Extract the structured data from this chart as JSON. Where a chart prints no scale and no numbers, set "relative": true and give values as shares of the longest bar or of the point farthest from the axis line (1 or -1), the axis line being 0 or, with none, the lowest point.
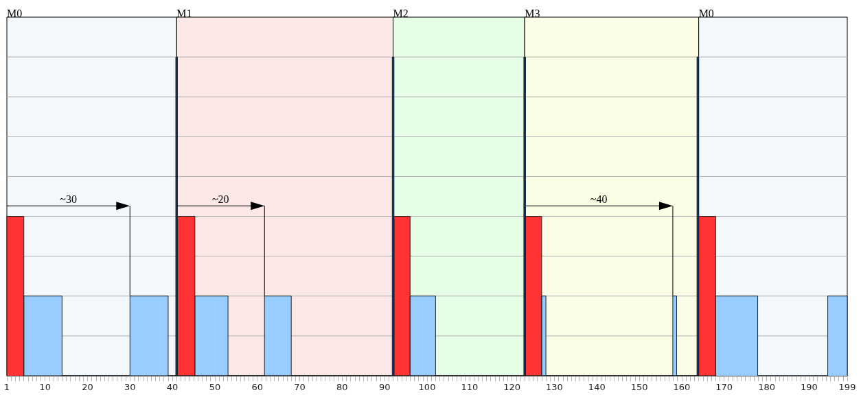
{
  "chart_data": {
    "type": "area",
    "relative": true,
    "series": [
      {
        "color": "#ff3333",
        "x": [
          1,
          1,
          5,
          5,
          41.2,
          41.2,
          45.3,
          45.3,
          92.2,
          92.2,
          96,
          96,
          123.2,
          123.2,
          127,
          127,
          164,
          164,
          168,
          168
        ],
        "values": [
          0,
          0.5,
          0.5,
          0,
          0,
          0.5,
          0.5,
          0,
          0,
          0.5,
          0.5,
          0,
          0,
          0.5,
          0.5,
          0,
          0,
          0.5,
          0.5,
          0
        ]
      },
      {
        "color": "#99ccff",
        "x": [
          5,
          5,
          14,
          14,
          30,
          30,
          39,
          39,
          45.3,
          45.3,
          53.1,
          53.1,
          61.7,
          61.7,
          68,
          68,
          96,
          96,
          102,
          102,
          127,
          127,
          128,
          128,
          157.9,
          157.9,
          158.8,
          158.8,
          168,
          168,
          177.9,
          177.9,
          194.4,
          194.4,
          199,
          199
        ],
        "values": [
          0,
          0.25,
          0.25,
          0,
          0,
          0.25,
          0.25,
          0,
          0,
          0.25,
          0.25,
          0,
          0,
          0.25,
          0.25,
          0,
          0,
          0.25,
          0.25,
          0,
          0,
          0.25,
          0.25,
          0,
          0,
          0.25,
          0.25,
          0,
          0,
          0.25,
          0.25,
          0,
          0,
          0.25,
          0.25,
          0
        ]
      },
      {
        "color": "#003366",
        "x": [
          40.8,
          40.8,
          41.2,
          41.2,
          91.8,
          91.8,
          92.2,
          92.2,
          122.8,
          122.8,
          123.2,
          123.2,
          163.6,
          163.6,
          164,
          164
        ],
        "values": [
          0,
          1,
          1,
          0,
          0,
          1,
          1,
          0,
          0,
          1,
          1,
          0,
          0,
          1,
          1,
          0
        ]
      }
    ],
    "xlim": [
      1,
      199
    ],
    "xticks": [
      1,
      10,
      20,
      30,
      40,
      50,
      60,
      70,
      80,
      90,
      100,
      110,
      120,
      130,
      140,
      150,
      160,
      170,
      180,
      190,
      199
    ],
    "grid": "y",
    "bands": [
      {
        "axis": "x",
        "from": 1,
        "to": 41,
        "label": "M0",
        "color": "#f3f8fd"
      },
      {
        "axis": "x",
        "from": 41,
        "to": 92,
        "label": "M1",
        "color": "#fde8e8"
      },
      {
        "axis": "x",
        "from": 92,
        "to": 123,
        "label": "M2",
        "color": "#e6fde6"
      },
      {
        "axis": "x",
        "from": 123,
        "to": 164,
        "label": "M3",
        "color": "#fcfde6"
      },
      {
        "axis": "x",
        "from": 164,
        "to": 199,
        "label": "M0",
        "color": "#f3f8fd"
      }
    ],
    "annotations": [
      "~30",
      "~20",
      "~40"
    ]
  }
}
